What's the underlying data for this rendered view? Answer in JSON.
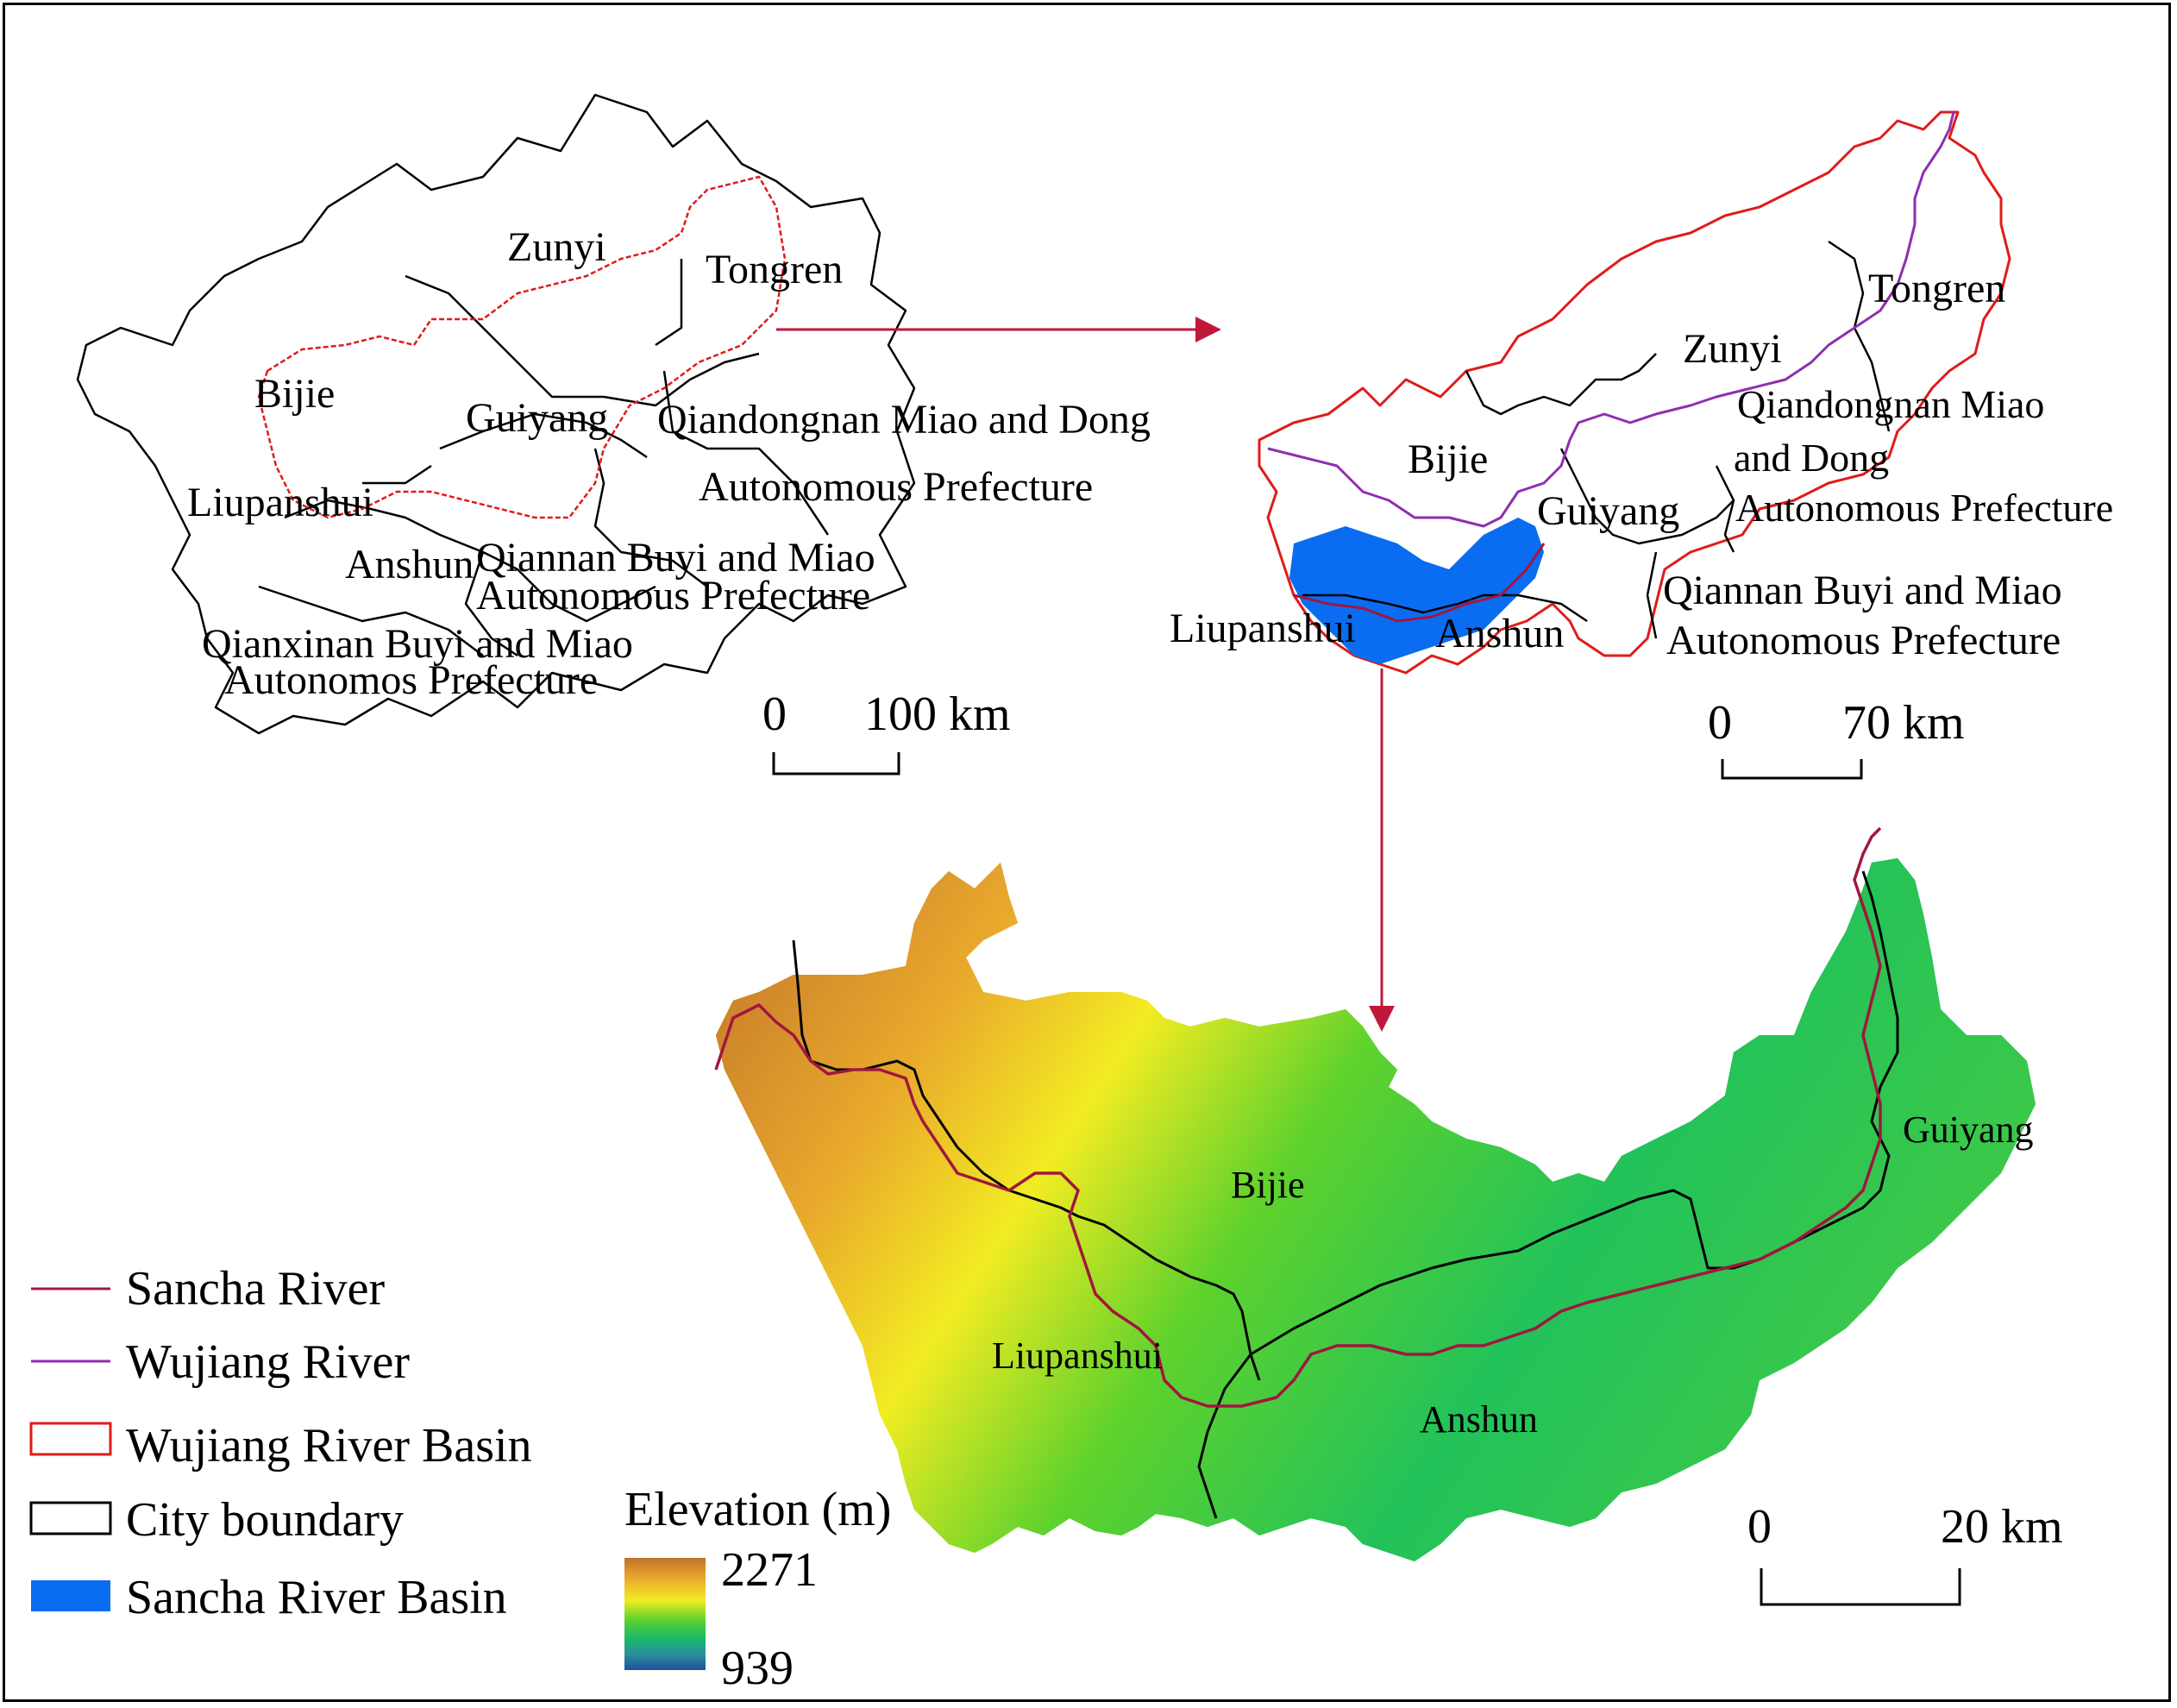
{
  "overview_map": {
    "labels": {
      "zunyi": "Zunyi",
      "tongren": "Tongren",
      "bijie": "Bijie",
      "guiyang": "Guiyang",
      "qiandongnan_1": "Qiandongnan Miao and Dong",
      "qiandongnan_2": "Autonomous Prefecture",
      "liupanshui": "Liupanshui",
      "anshun": "Anshun",
      "qiannan_1": "Qiannan Buyi and Miao",
      "qiannan_2": "Autonomous Prefecture",
      "qianxinan_1": "Qianxinan Buyi and Miao",
      "qianxinan_2": "Autonomos Prefecture"
    },
    "scale_zero": "0",
    "scale_label": "100 km"
  },
  "basin_map": {
    "labels": {
      "tongren": "Tongren",
      "zunyi": "Zunyi",
      "qiandongnan_1": "Qiandongnan Miao",
      "qiandongnan_2": "and Dong",
      "qiandongnan_3": "Autonomous Prefecture",
      "bijie": "Bijie",
      "guiyang": "Guiyang",
      "qiannan_1": "Qiannan Buyi and Miao",
      "qiannan_2": "Autonomous Prefecture",
      "liupanshui": "Liupanshui",
      "anshun": "Anshun"
    },
    "scale_zero": "0",
    "scale_label": "70 km"
  },
  "dem_map": {
    "labels": {
      "bijie": "Bijie",
      "guiyang": "Guiyang",
      "liupanshui": "Liupanshui",
      "anshun": "Anshun"
    },
    "scale_zero": "0",
    "scale_label": "20 km"
  },
  "legend": {
    "items": [
      {
        "label": "Sancha River",
        "symbol": "line",
        "color": "#a0173f"
      },
      {
        "label": "Wujiang River",
        "symbol": "line",
        "color": "#8e2fb0"
      },
      {
        "label": "Wujiang River Basin",
        "symbol": "box-outline",
        "color": "#e01b1b"
      },
      {
        "label": "City boundary",
        "symbol": "box-outline",
        "color": "#000000"
      },
      {
        "label": "Sancha River Basin",
        "symbol": "box-fill",
        "color": "#0a6cf0"
      }
    ]
  },
  "elevation_legend": {
    "title": "Elevation (m)",
    "max": "2271",
    "min": "939",
    "ramp_colors": [
      "#c0722a",
      "#e9a92c",
      "#f2ec22",
      "#5fd22c",
      "#18b86a",
      "#2a8f9c",
      "#1f4fa0"
    ]
  },
  "colors": {
    "basin_outline": "#e01b1b",
    "city_boundary": "#000000",
    "wujiang_river": "#8e2fb0",
    "sancha_river": "#a0173f",
    "sancha_basin_fill": "#0a6cf0",
    "arrow": "#c0183a"
  }
}
